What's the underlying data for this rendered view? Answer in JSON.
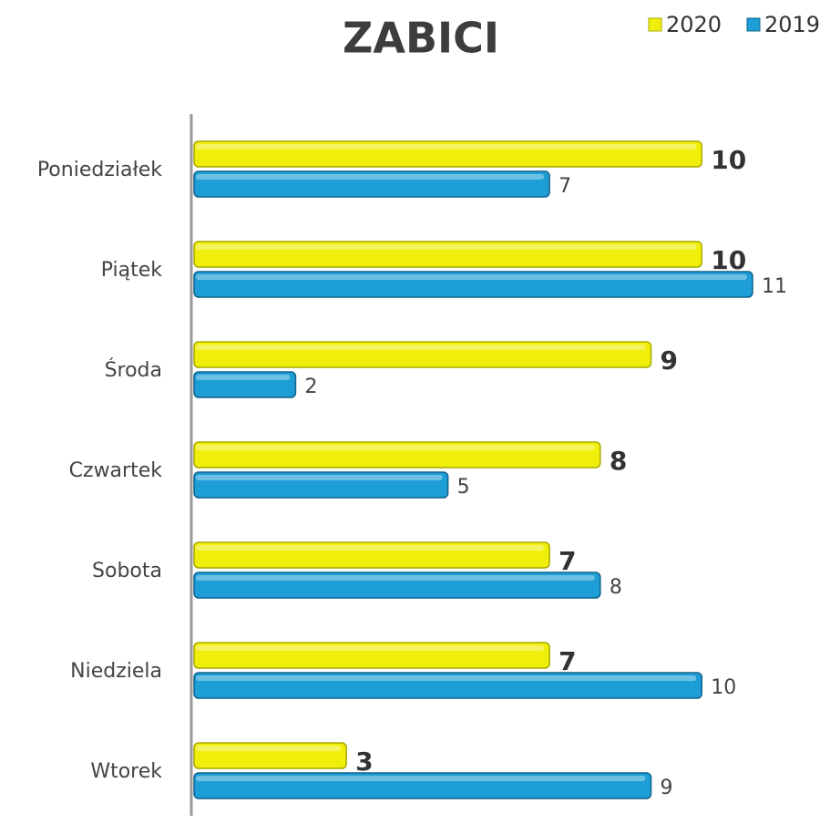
{
  "chart_data": {
    "type": "bar",
    "orientation": "horizontal",
    "title": "ZABICI",
    "categories": [
      "Poniedziałek",
      "Piątek",
      "Środa",
      "Czwartek",
      "Sobota",
      "Niedziela",
      "Wtorek"
    ],
    "series": [
      {
        "name": "2020",
        "color": "#f0ef0c",
        "values": [
          10,
          10,
          9,
          8,
          7,
          7,
          3
        ]
      },
      {
        "name": "2019",
        "color": "#1e9ed6",
        "values": [
          7,
          11,
          2,
          5,
          8,
          10,
          9
        ]
      }
    ],
    "xlim": [
      0,
      11
    ],
    "legend": "top-right"
  }
}
